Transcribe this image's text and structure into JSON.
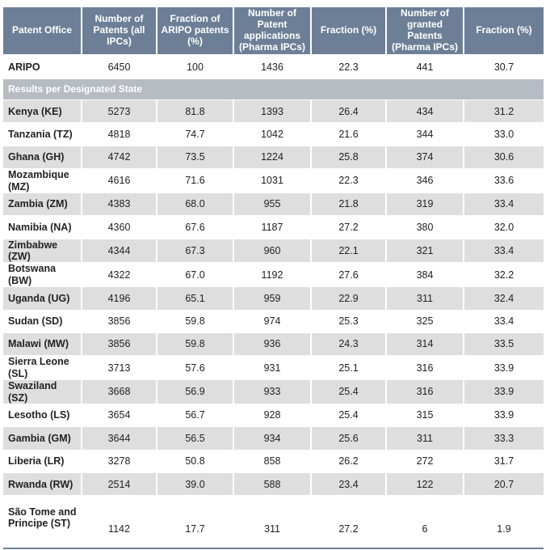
{
  "header": {
    "col1": "Patent Office",
    "col2": "Number of Patents (all IPCs)",
    "col3": "Fraction of ARIPO patents (%)",
    "col4": "Number of Patent applications (Pharma IPCs)",
    "col5": "Fraction (%)",
    "col6": "Number of granted Patents (Pharma IPCs)",
    "col7": "Fraction (%)"
  },
  "aripo": [
    "ARIPO",
    "6450",
    "100",
    "1436",
    "22.3",
    "441",
    "30.7"
  ],
  "section_label": "Results per Designated State",
  "rows": [
    [
      "Kenya (KE)",
      "5273",
      "81.8",
      "1393",
      "26.4",
      "434",
      "31.2"
    ],
    [
      "Tanzania (TZ)",
      "4818",
      "74.7",
      "1042",
      "21.6",
      "344",
      "33.0"
    ],
    [
      "Ghana (GH)",
      "4742",
      "73.5",
      "1224",
      "25.8",
      "374",
      "30.6"
    ],
    [
      "Mozambique (MZ)",
      "4616",
      "71.6",
      "1031",
      "22.3",
      "346",
      "33.6"
    ],
    [
      "Zambia (ZM)",
      "4383",
      "68.0",
      "955",
      "21.8",
      "319",
      "33.4"
    ],
    [
      "Namibia (NA)",
      "4360",
      "67.6",
      "1187",
      "27.2",
      "380",
      "32.0"
    ],
    [
      "Zimbabwe (ZW)",
      "4344",
      "67.3",
      "960",
      "22.1",
      "321",
      "33.4"
    ],
    [
      "Botswana (BW)",
      "4322",
      "67.0",
      "1192",
      "27.6",
      "384",
      "32.2"
    ],
    [
      "Uganda (UG)",
      "4196",
      "65.1",
      "959",
      "22.9",
      "311",
      "32.4"
    ],
    [
      "Sudan (SD)",
      "3856",
      "59.8",
      "974",
      "25.3",
      "325",
      "33.4"
    ],
    [
      "Malawi (MW)",
      "3856",
      "59.8",
      "936",
      "24.3",
      "314",
      "33.5"
    ],
    [
      "Sierra Leone (SL)",
      "3713",
      "57.6",
      "931",
      "25.1",
      "316",
      "33.9"
    ],
    [
      "Swaziland (SZ)",
      "3668",
      "56.9",
      "933",
      "25.4",
      "316",
      "33.9"
    ],
    [
      "Lesotho (LS)",
      "3654",
      "56.7",
      "928",
      "25.4",
      "315",
      "33.9"
    ],
    [
      "Gambia (GM)",
      "3644",
      "56.5",
      "934",
      "25.6",
      "311",
      "33.3"
    ],
    [
      "Liberia (LR)",
      "3278",
      "50.8",
      "858",
      "26.2",
      "272",
      "31.7"
    ],
    [
      "Rwanda (RW)",
      "2514",
      "39.0",
      "588",
      "23.4",
      "122",
      "20.7"
    ]
  ],
  "last_row": {
    "name_line1": "São Tome and",
    "name_line2": "Principe (ST)",
    "values": [
      "1142",
      "17.7",
      "311",
      "27.2",
      "6",
      "1.9"
    ]
  }
}
